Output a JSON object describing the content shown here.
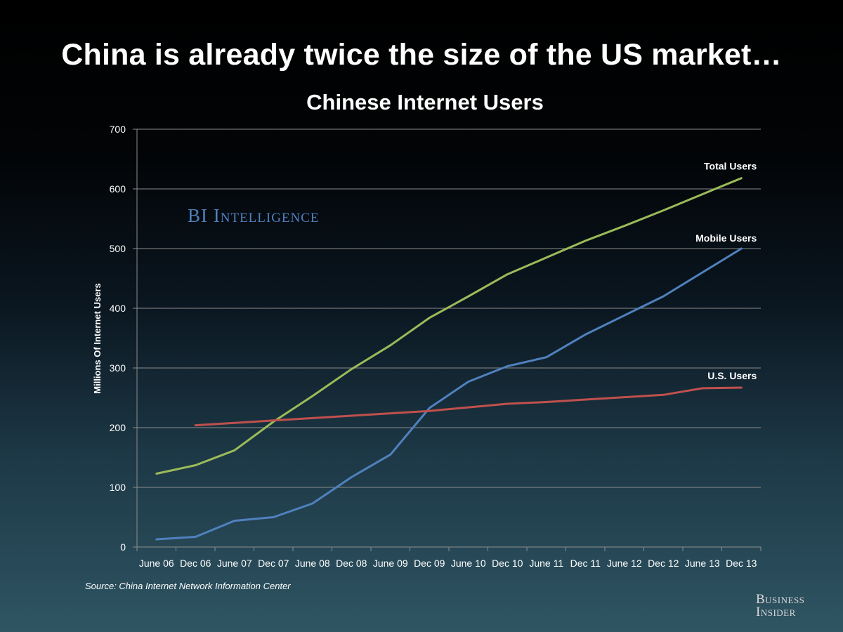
{
  "headline": "China is already twice the size of the US market…",
  "watermark": "BI Intelligence",
  "source": "Source: China Internet Network Information Center",
  "brand": "Business\nInsider",
  "colors": {
    "total": "#9bbb59",
    "mobile": "#4f81bd",
    "us": "#c0504d",
    "grid": "#8c8c8c",
    "watermark": "#4f80bd"
  },
  "chart_data": {
    "type": "line",
    "title": "Chinese Internet Users",
    "xlabel": "",
    "ylabel": "Millions Of Internet Users",
    "ylim": [
      0,
      700
    ],
    "yticks": [
      0,
      100,
      200,
      300,
      400,
      500,
      600,
      700
    ],
    "grid": true,
    "legend": "labels placed at line ends",
    "categories": [
      "June 06",
      "Dec 06",
      "June 07",
      "Dec 07",
      "June 08",
      "Dec 08",
      "June 09",
      "Dec 09",
      "June 10",
      "Dec 10",
      "June 11",
      "Dec 11",
      "June 12",
      "Dec 12",
      "June 13",
      "Dec 13"
    ],
    "series": [
      {
        "name": "Total Users",
        "color": "#9bbb59",
        "values": [
          123,
          137,
          162,
          210,
          253,
          298,
          338,
          384,
          420,
          457,
          485,
          513,
          538,
          564,
          591,
          618
        ]
      },
      {
        "name": "Mobile Users",
        "color": "#4f81bd",
        "values": [
          13,
          17,
          44,
          50,
          73,
          117,
          155,
          233,
          277,
          303,
          318,
          356,
          388,
          420,
          460,
          500
        ]
      },
      {
        "name": "U.S. Users",
        "color": "#c0504d",
        "values": [
          null,
          204,
          208,
          212,
          216,
          220,
          224,
          228,
          234,
          240,
          243,
          247,
          251,
          255,
          266,
          267
        ]
      }
    ]
  }
}
